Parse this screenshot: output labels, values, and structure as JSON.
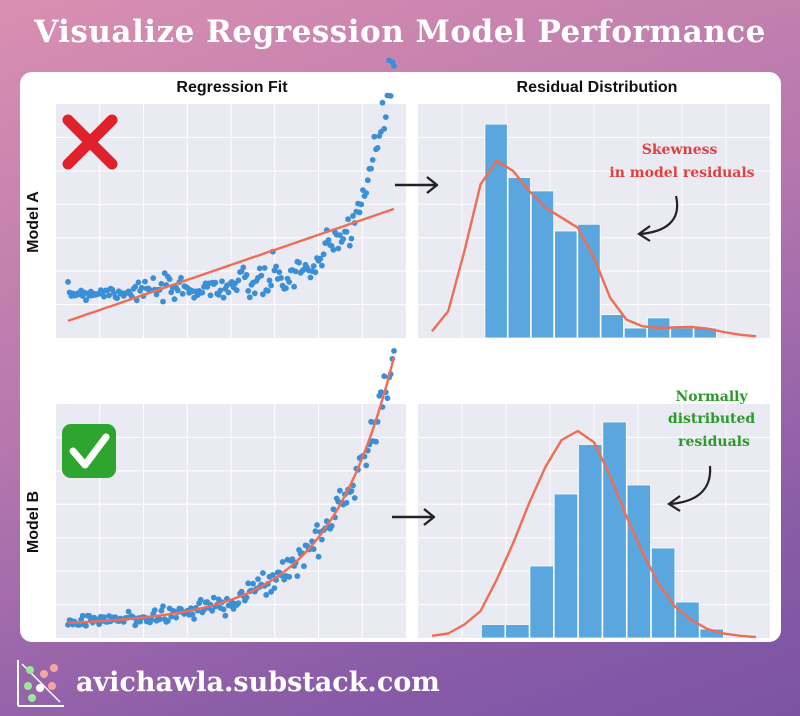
{
  "page": {
    "title": "Visualize Regression Model Performance",
    "footer": "avichawla.substack.com"
  },
  "labels": {
    "col_left": "Regression Fit",
    "col_right": "Residual Distribution",
    "row_a": "Model A",
    "row_b": "Model B"
  },
  "icons": {
    "bad": "cross-mark-icon",
    "good": "check-mark-icon",
    "logo": "scatter-logo-icon"
  },
  "colors": {
    "points": "#3a8fd6",
    "fit": "#ee6e55",
    "hist": "#5aa7e0",
    "kde": "#ee6e55",
    "bad": "#e0202a",
    "good": "#2ea52e",
    "note_a": "#e04040",
    "note_b": "#2a9a2a"
  },
  "annotations": {
    "a": [
      "Skewness",
      "in model residuals"
    ],
    "b": [
      "Normally",
      "distributed",
      "residuals"
    ]
  },
  "chart_data": [
    {
      "type": "scatter",
      "id": "model-a-fit",
      "title": "",
      "xlim": [
        0,
        10
      ],
      "ylim": [
        -0.2,
        7
      ],
      "grid": true,
      "points_model": {
        "form": "1 + 0.5*exp(x - 7)",
        "n": 200
      },
      "fit_line": {
        "x": [
          0,
          10
        ],
        "y": [
          0.1,
          3.8
        ]
      }
    },
    {
      "type": "bar",
      "id": "model-a-residuals",
      "bins": 10,
      "values": [
        6.4,
        4.8,
        4.4,
        3.2,
        3.4,
        0.7,
        0.3,
        0.6,
        0.3,
        0.3
      ],
      "ylim": [
        0,
        7
      ],
      "kde_y": [
        0.2,
        0.8,
        2.6,
        4.6,
        5.3,
        5.0,
        4.4,
        3.9,
        3.6,
        3.3,
        2.4,
        1.2,
        0.55,
        0.35,
        0.3,
        0.32,
        0.33,
        0.28,
        0.18,
        0.1,
        0.05
      ]
    },
    {
      "type": "scatter",
      "id": "model-b-fit",
      "xlim": [
        0,
        10
      ],
      "ylim": [
        -0.2,
        6
      ],
      "grid": true,
      "points_model": {
        "form": "0.05*exp(0.5*x)",
        "n": 200
      },
      "fit_line": {
        "form": "exponential"
      }
    },
    {
      "type": "bar",
      "id": "model-b-residuals",
      "bins": 10,
      "values": [
        0.3,
        0.3,
        1.6,
        3.2,
        4.3,
        4.8,
        3.4,
        2.0,
        0.8,
        0.2
      ],
      "ylim": [
        0,
        5.2
      ],
      "kde_y": [
        0.05,
        0.1,
        0.3,
        0.6,
        1.3,
        2.1,
        3.0,
        3.8,
        4.4,
        4.6,
        4.35,
        3.6,
        2.7,
        1.9,
        1.2,
        0.7,
        0.4,
        0.2,
        0.1,
        0.05,
        0.02
      ]
    }
  ]
}
